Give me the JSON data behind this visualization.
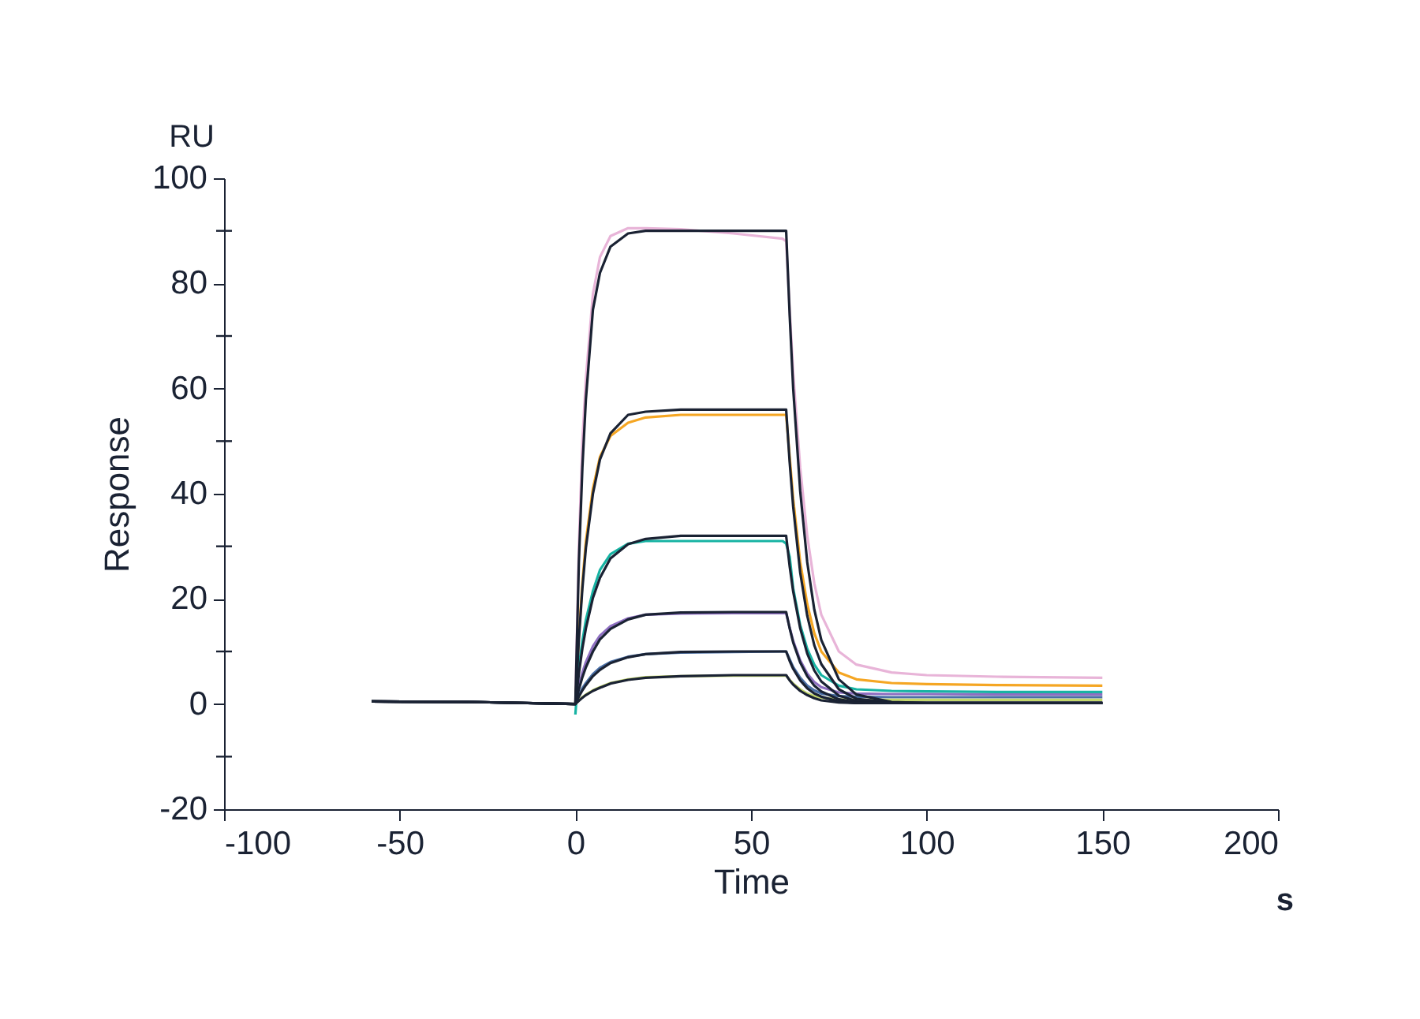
{
  "chart_data": {
    "type": "line",
    "xlabel": "Time",
    "ylabel": "Response",
    "annotations": [
      "RU",
      "s"
    ],
    "x": [
      -58,
      -30,
      0,
      1,
      2,
      3,
      5,
      7,
      10,
      15,
      20,
      30,
      45,
      59,
      60,
      61,
      62,
      64,
      66,
      68,
      70,
      75,
      80,
      90,
      100,
      120,
      150
    ],
    "series": [
      {
        "color": "#e8b4d8",
        "x": [
          0,
          1,
          2,
          3,
          5,
          7,
          10,
          15,
          20,
          30,
          45,
          59,
          60,
          61,
          62,
          64,
          66,
          68,
          70,
          75,
          80,
          90,
          100,
          120,
          150
        ],
        "values": [
          0,
          30,
          50,
          62,
          78,
          85,
          89,
          90.5,
          90.5,
          90.3,
          89.5,
          88.5,
          88,
          75,
          63,
          45,
          32,
          23,
          17,
          10,
          7.5,
          6,
          5.5,
          5.2,
          5
        ]
      },
      {
        "color": "#f5a623",
        "x": [
          0,
          1,
          2,
          3,
          5,
          7,
          10,
          15,
          20,
          30,
          45,
          59,
          60,
          61,
          62,
          64,
          66,
          68,
          70,
          75,
          80,
          90,
          100,
          120,
          150
        ],
        "values": [
          0,
          13,
          23,
          31,
          41,
          47,
          51,
          53.5,
          54.5,
          55,
          55,
          55,
          55,
          47,
          39,
          27,
          19,
          13.5,
          10,
          6,
          4.7,
          4,
          3.8,
          3.6,
          3.5
        ]
      },
      {
        "color": "#17b3a3",
        "x": [
          0,
          1,
          2,
          3,
          5,
          7,
          10,
          15,
          20,
          30,
          45,
          59,
          60,
          61,
          62,
          64,
          66,
          68,
          70,
          75,
          80,
          90,
          100,
          120,
          150
        ],
        "values": [
          -2,
          7,
          12,
          16,
          21.5,
          25.5,
          28.5,
          30.5,
          31,
          31,
          31,
          31,
          30.5,
          28,
          22,
          15,
          10.5,
          7.5,
          5.5,
          3.5,
          2.8,
          2.5,
          2.4,
          2.3,
          2.3
        ]
      },
      {
        "color": "#8e6fc1",
        "x": [
          0,
          1,
          2,
          3,
          5,
          7,
          10,
          15,
          20,
          30,
          45,
          59,
          60,
          61,
          62,
          64,
          66,
          68,
          70,
          75,
          80,
          90,
          100,
          120,
          150
        ],
        "values": [
          0,
          3.3,
          6,
          8,
          11,
          13,
          14.8,
          16.3,
          17,
          17.2,
          17.3,
          17.3,
          17.3,
          14.5,
          12,
          8.3,
          5.8,
          4.2,
          3.2,
          2.2,
          2,
          1.9,
          1.9,
          1.8,
          1.8
        ]
      },
      {
        "color": "#4a6fa5",
        "x": [
          0,
          1,
          2,
          3,
          5,
          7,
          10,
          15,
          20,
          30,
          45,
          59,
          60,
          61,
          62,
          64,
          66,
          68,
          70,
          75,
          80,
          90,
          100,
          120,
          150
        ],
        "values": [
          0,
          1.6,
          3,
          4,
          5.7,
          6.9,
          8,
          9,
          9.5,
          9.8,
          9.9,
          10,
          10,
          8.5,
          7,
          5,
          3.5,
          2.6,
          2,
          1.5,
          1.4,
          1.3,
          1.3,
          1.3,
          1.3
        ]
      },
      {
        "color": "#c5d86d",
        "x": [
          0,
          1,
          2,
          3,
          5,
          7,
          10,
          15,
          20,
          30,
          45,
          59,
          60,
          61,
          62,
          64,
          66,
          68,
          70,
          75,
          80,
          90,
          100,
          120,
          150
        ],
        "values": [
          0,
          0.7,
          1.3,
          1.8,
          2.6,
          3.2,
          4,
          4.7,
          5.1,
          5.3,
          5.4,
          5.4,
          5.4,
          4.6,
          3.9,
          2.8,
          2,
          1.5,
          1.2,
          0.9,
          0.8,
          0.8,
          0.8,
          0.8,
          0.8
        ]
      },
      {
        "color": "#1a2233",
        "values": [
          0.5,
          0.4,
          0,
          27,
          45,
          58,
          75,
          82,
          87,
          89.5,
          90,
          90,
          90,
          90,
          90,
          74,
          60,
          40.5,
          27,
          18,
          12.2,
          4.7,
          1.8,
          0.4,
          0.2,
          0.2,
          0.2
        ]
      },
      {
        "color": "#1a2233",
        "values": [
          0.5,
          0.4,
          0,
          12.3,
          22,
          29.7,
          40,
          46.5,
          51.5,
          55,
          55.6,
          56,
          56,
          56,
          56,
          46,
          37.5,
          25,
          16.8,
          11.2,
          7.6,
          2.8,
          1.0,
          0.3,
          0.2,
          0.2,
          0.2
        ]
      },
      {
        "color": "#1a2233",
        "values": [
          0.5,
          0.4,
          0,
          5.8,
          10.6,
          14.4,
          20.2,
          24,
          27.7,
          30.4,
          31.4,
          32,
          32,
          32,
          32,
          26.2,
          21.4,
          14.4,
          9.6,
          6.4,
          4.3,
          1.6,
          0.6,
          0.2,
          0.2,
          0.2,
          0.2
        ]
      },
      {
        "color": "#1a2233",
        "values": [
          0.5,
          0.4,
          0,
          2.8,
          5.1,
          7,
          10,
          12.3,
          14.3,
          16.1,
          17,
          17.4,
          17.5,
          17.5,
          17.5,
          14.4,
          11.7,
          7.9,
          5.3,
          3.5,
          2.4,
          0.9,
          0.3,
          0.2,
          0.2,
          0.2,
          0.2
        ]
      },
      {
        "color": "#1a2233",
        "values": [
          0.5,
          0.4,
          0,
          1.4,
          2.6,
          3.6,
          5.3,
          6.5,
          7.8,
          8.9,
          9.5,
          9.9,
          10,
          10,
          10,
          8.2,
          6.7,
          4.5,
          3,
          2,
          1.4,
          0.5,
          0.2,
          0.2,
          0.2,
          0.2,
          0.2
        ]
      },
      {
        "color": "#1a2233",
        "values": [
          0.5,
          0.4,
          0,
          0.6,
          1.2,
          1.7,
          2.5,
          3.1,
          3.9,
          4.6,
          5,
          5.3,
          5.5,
          5.5,
          5.5,
          4.5,
          3.7,
          2.5,
          1.7,
          1.1,
          0.7,
          0.3,
          0.2,
          0.2,
          0.2,
          0.2,
          0.2
        ]
      }
    ],
    "xlim": [
      -100,
      200
    ],
    "xticks": [
      -100,
      -50,
      0,
      50,
      100,
      150,
      200
    ],
    "ylim": [
      -20,
      100
    ],
    "yticks": [
      -20,
      {
        "value": -10,
        "label": null
      },
      0,
      {
        "value": 10,
        "label": null
      },
      20,
      {
        "value": 30,
        "label": null
      },
      40,
      {
        "value": 50,
        "label": null
      },
      60,
      {
        "value": 70,
        "label": null
      },
      80,
      {
        "value": 90,
        "label": null
      },
      100
    ],
    "grid": false,
    "legend": false,
    "marker": "none",
    "line_style": "solid"
  }
}
